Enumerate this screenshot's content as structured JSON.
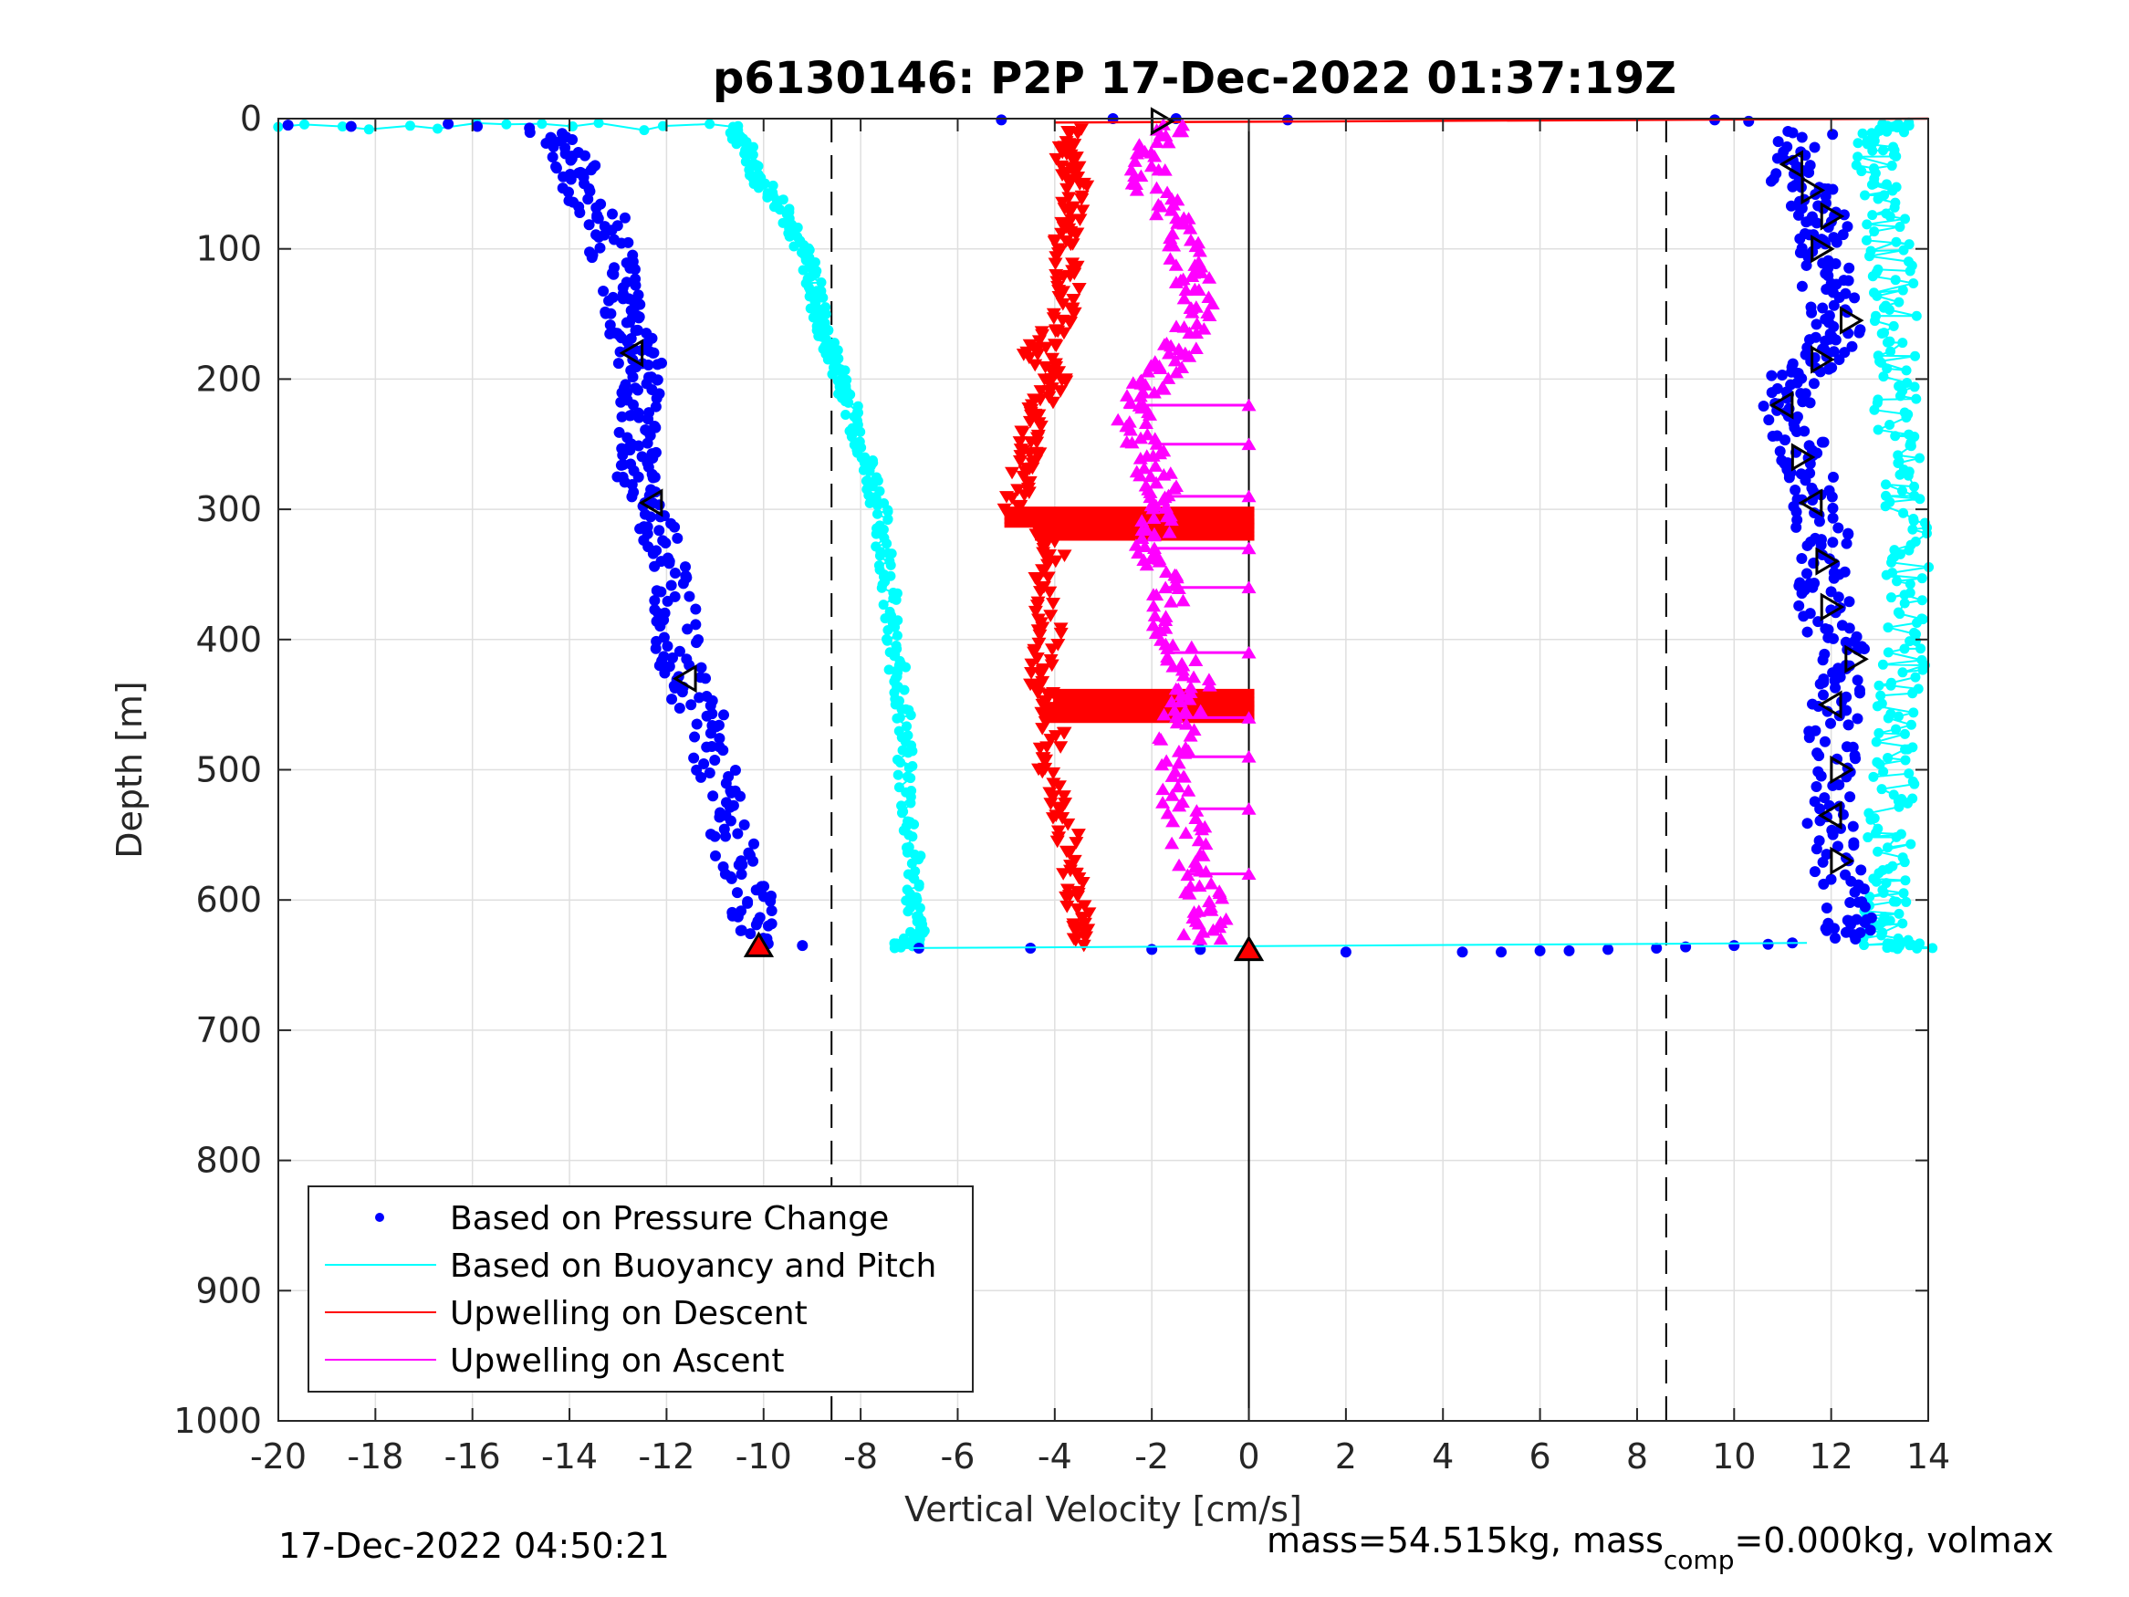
{
  "chart_data": {
    "type": "scatter",
    "title": "p6130146: P2P 17-Dec-2022 01:37:19Z",
    "xlabel": "Vertical Velocity [cm/s]",
    "ylabel": "Depth [m]",
    "xlim": [
      -20,
      14
    ],
    "ylim": [
      0,
      1000
    ],
    "y_reversed": true,
    "grid": true,
    "x_ticks": [
      -20,
      -18,
      -16,
      -14,
      -12,
      -10,
      -8,
      -6,
      -4,
      -2,
      0,
      2,
      4,
      6,
      8,
      10,
      12,
      14
    ],
    "y_ticks": [
      0,
      100,
      200,
      300,
      400,
      500,
      600,
      700,
      800,
      900,
      1000
    ],
    "reference_lines": [
      {
        "x": -8.6,
        "style": "dashed",
        "color": "#000000"
      },
      {
        "x": 8.6,
        "style": "dashed",
        "color": "#000000"
      },
      {
        "x": 0,
        "style": "solid",
        "color": "#000000"
      }
    ],
    "legend_position": "bottom-left",
    "series": [
      {
        "name": "Based on Pressure Change",
        "marker": "dot",
        "color": "#0000ff",
        "descent": [
          [
            -14.5,
            10
          ],
          [
            -14,
            30
          ],
          [
            -13.8,
            50
          ],
          [
            -13.3,
            80
          ],
          [
            -13.1,
            110
          ],
          [
            -12.9,
            140
          ],
          [
            -12.8,
            160
          ],
          [
            -12.6,
            180
          ],
          [
            -12.5,
            200
          ],
          [
            -12.6,
            220
          ],
          [
            -12.5,
            250
          ],
          [
            -12.7,
            270
          ],
          [
            -12.3,
            300
          ],
          [
            -12.0,
            330
          ],
          [
            -11.8,
            360
          ],
          [
            -11.8,
            400
          ],
          [
            -11.7,
            430
          ],
          [
            -11.2,
            460
          ],
          [
            -11.0,
            500
          ],
          [
            -10.8,
            540
          ],
          [
            -10.4,
            580
          ],
          [
            -10.2,
            610
          ],
          [
            -10.1,
            635
          ]
        ],
        "ascent": [
          [
            11.5,
            10
          ],
          [
            11.2,
            40
          ],
          [
            11.6,
            60
          ],
          [
            11.9,
            80
          ],
          [
            11.8,
            100
          ],
          [
            11.9,
            130
          ],
          [
            12.2,
            160
          ],
          [
            11.8,
            180
          ],
          [
            11.3,
            200
          ],
          [
            11.0,
            220
          ],
          [
            11.4,
            250
          ],
          [
            11.5,
            270
          ],
          [
            11.7,
            300
          ],
          [
            11.9,
            330
          ],
          [
            11.8,
            360
          ],
          [
            12.0,
            390
          ],
          [
            12.4,
            420
          ],
          [
            12.0,
            450
          ],
          [
            12.1,
            490
          ],
          [
            12.0,
            530
          ],
          [
            12.1,
            570
          ],
          [
            12.3,
            610
          ],
          [
            12.5,
            630
          ]
        ],
        "surface": [
          [
            -19.8,
            5
          ],
          [
            -18.5,
            6
          ],
          [
            -16.5,
            4
          ],
          [
            -15.9,
            6
          ],
          [
            -5.1,
            1
          ],
          [
            -2.8,
            0
          ],
          [
            -1.5,
            0
          ],
          [
            0.8,
            1
          ],
          [
            9.6,
            1
          ],
          [
            10.3,
            2
          ]
        ],
        "bottom": [
          [
            -9.2,
            635
          ],
          [
            -6.8,
            637
          ],
          [
            -4.5,
            637
          ],
          [
            -2.0,
            638
          ],
          [
            -1.0,
            638
          ],
          [
            2.0,
            640
          ],
          [
            4.4,
            640
          ],
          [
            5.2,
            640
          ],
          [
            6.0,
            639
          ],
          [
            6.6,
            639
          ],
          [
            7.4,
            638
          ],
          [
            8.4,
            637
          ],
          [
            9.0,
            636
          ],
          [
            10.0,
            635
          ],
          [
            10.7,
            634
          ],
          [
            11.2,
            633
          ]
        ]
      },
      {
        "name": "Based on Buoyancy and Pitch",
        "marker": "line+dot",
        "color": "#00ffff",
        "descent": [
          [
            -20,
            6
          ],
          [
            -10.6,
            6
          ],
          [
            -10.4,
            20
          ],
          [
            -10.2,
            40
          ],
          [
            -9.8,
            60
          ],
          [
            -9.4,
            80
          ],
          [
            -9.2,
            100
          ],
          [
            -9.0,
            120
          ],
          [
            -8.9,
            140
          ],
          [
            -8.8,
            160
          ],
          [
            -8.6,
            180
          ],
          [
            -8.4,
            200
          ],
          [
            -8.2,
            220
          ],
          [
            -8.0,
            250
          ],
          [
            -7.8,
            270
          ],
          [
            -7.6,
            300
          ],
          [
            -7.5,
            330
          ],
          [
            -7.4,
            360
          ],
          [
            -7.4,
            400
          ],
          [
            -7.2,
            430
          ],
          [
            -7.1,
            460
          ],
          [
            -7.1,
            500
          ],
          [
            -7.0,
            540
          ],
          [
            -6.9,
            580
          ],
          [
            -6.9,
            610
          ],
          [
            -6.8,
            630
          ],
          [
            -7.3,
            637
          ]
        ],
        "ascent": [
          [
            14.0,
            637
          ],
          [
            13.0,
            632
          ],
          [
            13.1,
            610
          ],
          [
            13.2,
            580
          ],
          [
            13.2,
            540
          ],
          [
            13.3,
            500
          ],
          [
            13.3,
            460
          ],
          [
            13.5,
            420
          ],
          [
            13.5,
            380
          ],
          [
            13.6,
            340
          ],
          [
            13.5,
            300
          ],
          [
            13.4,
            260
          ],
          [
            13.3,
            220
          ],
          [
            13.4,
            180
          ],
          [
            13.3,
            140
          ],
          [
            13.2,
            100
          ],
          [
            13.1,
            60
          ],
          [
            12.9,
            30
          ],
          [
            13.0,
            10
          ],
          [
            13.6,
            3
          ]
        ]
      },
      {
        "name": "Upwelling on Descent",
        "marker": "triangle-down",
        "color": "#ff0000",
        "points": [
          [
            -3.6,
            10
          ],
          [
            -3.8,
            30
          ],
          [
            -3.5,
            50
          ],
          [
            -3.7,
            80
          ],
          [
            -3.8,
            100
          ],
          [
            -3.7,
            130
          ],
          [
            -3.9,
            160
          ],
          [
            -4.4,
            180
          ],
          [
            -4.0,
            200
          ],
          [
            -4.3,
            220
          ],
          [
            -4.5,
            250
          ],
          [
            -4.6,
            270
          ],
          [
            -4.9,
            300
          ],
          [
            -4.0,
            330
          ],
          [
            -4.2,
            360
          ],
          [
            -4.1,
            400
          ],
          [
            -4.4,
            430
          ],
          [
            -4.0,
            460
          ],
          [
            -4.2,
            500
          ],
          [
            -3.8,
            540
          ],
          [
            -3.6,
            580
          ],
          [
            -3.5,
            610
          ],
          [
            -3.4,
            635
          ]
        ],
        "spikes": [
          [
            0,
            300
          ],
          [
            0,
            310
          ],
          [
            0,
            440
          ],
          [
            0,
            450
          ]
        ],
        "surface_line": [
          [
            -4.0,
            3
          ],
          [
            14,
            0
          ]
        ]
      },
      {
        "name": "Upwelling on Ascent",
        "marker": "triangle-up",
        "color": "#ff00ff",
        "points": [
          [
            -1.5,
            5
          ],
          [
            -2.2,
            30
          ],
          [
            -1.9,
            60
          ],
          [
            -1.4,
            90
          ],
          [
            -1.2,
            120
          ],
          [
            -1.1,
            150
          ],
          [
            -1.5,
            180
          ],
          [
            -2.0,
            200
          ],
          [
            -2.4,
            220
          ],
          [
            -2.2,
            250
          ],
          [
            -1.8,
            280
          ],
          [
            -1.9,
            300
          ],
          [
            -2.0,
            330
          ],
          [
            -1.7,
            360
          ],
          [
            -1.5,
            400
          ],
          [
            -1.0,
            430
          ],
          [
            -1.4,
            460
          ],
          [
            -1.6,
            500
          ],
          [
            -1.3,
            540
          ],
          [
            -1.0,
            580
          ],
          [
            -0.8,
            610
          ],
          [
            -1.0,
            630
          ]
        ],
        "spikes": [
          [
            0,
            220
          ],
          [
            0,
            250
          ],
          [
            0,
            290
          ],
          [
            0,
            330
          ],
          [
            0,
            360
          ],
          [
            0,
            410
          ],
          [
            0,
            460
          ],
          [
            0,
            490
          ],
          [
            0,
            530
          ],
          [
            0,
            580
          ]
        ]
      }
    ],
    "markers": [
      {
        "shape": "triangle-right",
        "color": "#000000",
        "points": [
          [
            -1.8,
            2
          ],
          [
            11.6,
            55
          ],
          [
            12.0,
            75
          ],
          [
            11.8,
            100
          ],
          [
            12.4,
            155
          ],
          [
            11.8,
            185
          ],
          [
            11.4,
            260
          ],
          [
            11.9,
            340
          ],
          [
            12.0,
            375
          ],
          [
            12.5,
            415
          ],
          [
            12.2,
            500
          ],
          [
            12.2,
            570
          ]
        ]
      },
      {
        "shape": "triangle-left",
        "color": "#000000",
        "points": [
          [
            -12.7,
            180
          ],
          [
            -12.3,
            295
          ],
          [
            -11.6,
            430
          ],
          [
            11.2,
            35
          ],
          [
            11.0,
            220
          ],
          [
            11.6,
            295
          ],
          [
            12.0,
            450
          ],
          [
            12.0,
            535
          ]
        ]
      },
      {
        "shape": "triangle-up-red",
        "color": "#ff0000",
        "points": [
          [
            -10.1,
            635
          ],
          [
            0,
            638
          ]
        ]
      }
    ]
  },
  "footer": {
    "timestamp": "17-Dec-2022 04:50:21",
    "mass_prefix": "mass=54.515kg, mass",
    "mass_sub": "comp",
    "mass_suffix": "=0.000kg, volmax"
  }
}
